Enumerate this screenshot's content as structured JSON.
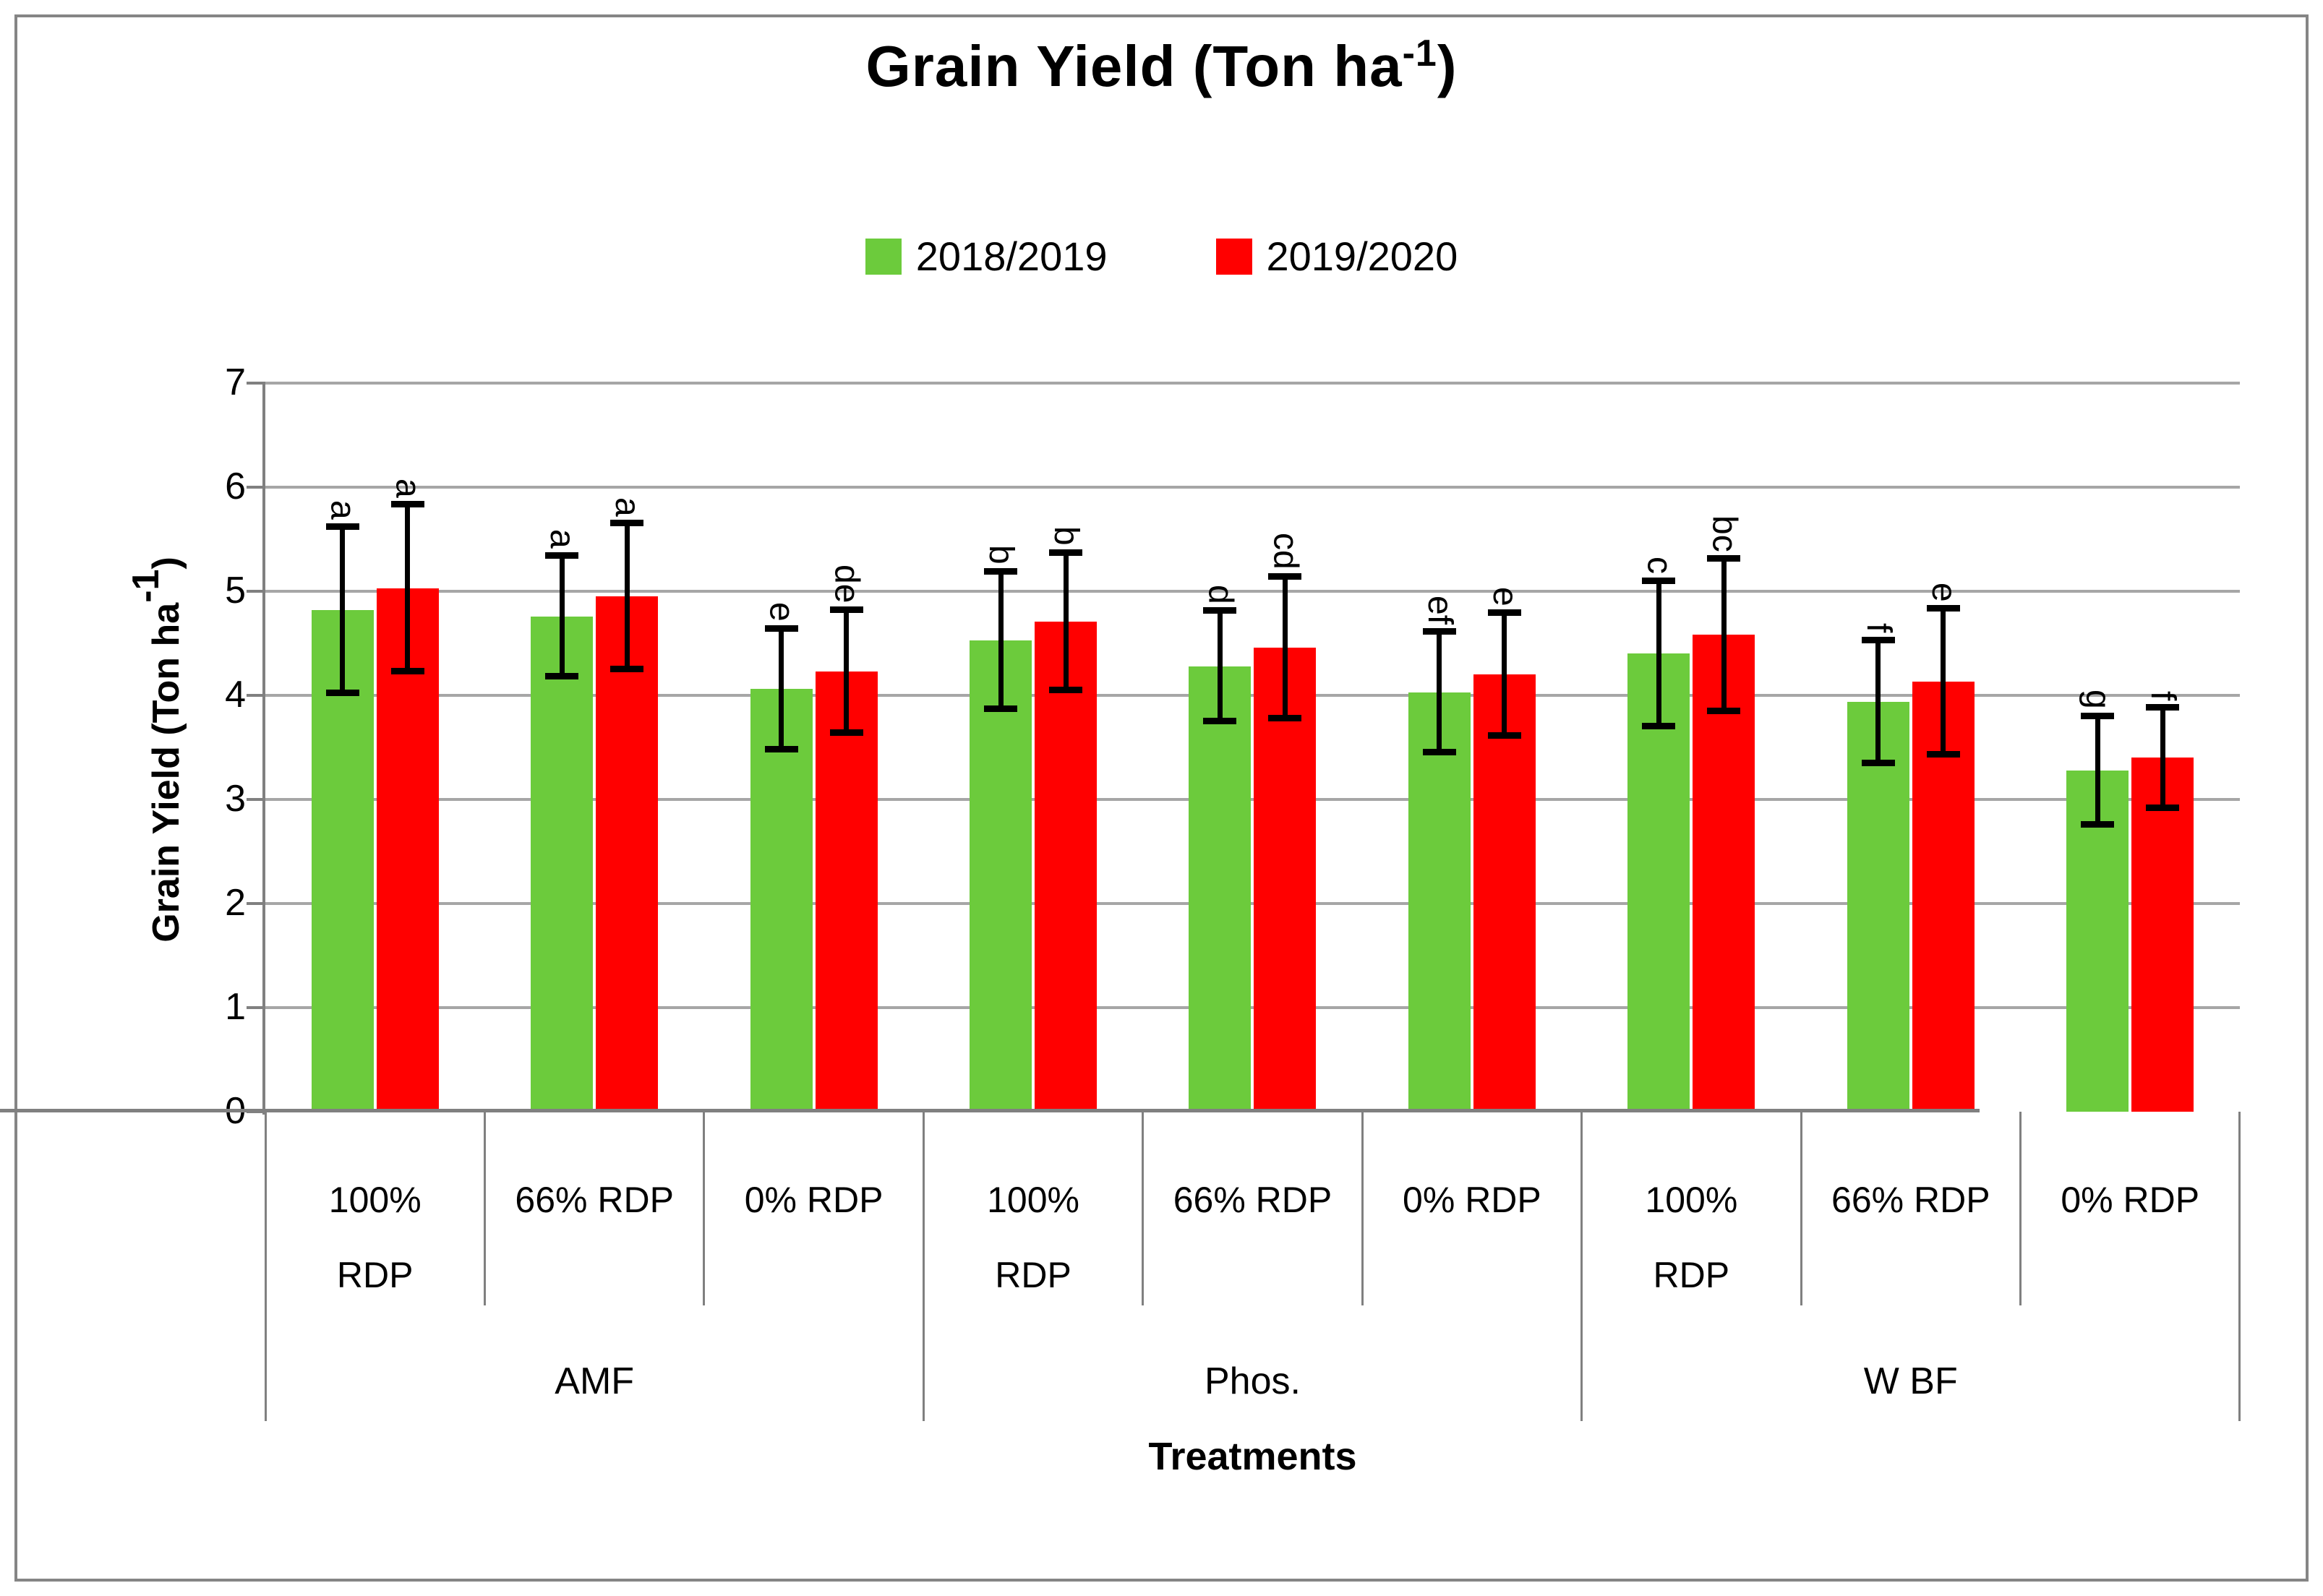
{
  "title": {
    "text": "Grain Yield (Ton ha",
    "sup": "-1",
    "end": ")"
  },
  "legend": {
    "items": [
      {
        "label": "2018/2019",
        "color": "#6CCB3C"
      },
      {
        "label": "2019/2020",
        "color": "#FF0000"
      }
    ]
  },
  "y_axis": {
    "title": "Grain Yield (Ton ha",
    "title_sup": "-1",
    "title_end": ")",
    "ticks": [
      "0",
      "1",
      "2",
      "3",
      "4",
      "5",
      "6",
      "7"
    ],
    "min": 0,
    "max": 7
  },
  "x_axis": {
    "title": "Treatments"
  },
  "chart_data": {
    "type": "bar",
    "title": "Grain Yield (Ton ha-1)",
    "ylabel": "Grain Yield (Ton ha-1)",
    "xlabel": "Treatments",
    "ylim": [
      0,
      7
    ],
    "grid": "horizontal",
    "legend_position": "top",
    "groups": [
      "AMF",
      "Phos.",
      "W BF"
    ],
    "categories_per_group": [
      "100% RDP",
      "66% RDP",
      "0% RDP"
    ],
    "gridline_color": "#A6A6A6",
    "axis_color": "#808080",
    "error_bar_color": "#000000",
    "series": [
      {
        "name": "2018/2019",
        "color": "#6CCB3C",
        "values": [
          4.82,
          4.76,
          4.06,
          4.53,
          4.28,
          4.03,
          4.4,
          3.94,
          3.28
        ],
        "errors": [
          0.8,
          0.58,
          0.58,
          0.66,
          0.53,
          0.58,
          0.7,
          0.59,
          0.52
        ],
        "letters": [
          "a",
          "a",
          "e",
          "b",
          "d",
          "ef",
          "c",
          "f",
          "g"
        ]
      },
      {
        "name": "2019/2020",
        "color": "#FF0000",
        "values": [
          5.03,
          4.95,
          4.23,
          4.71,
          4.46,
          4.2,
          4.58,
          4.13,
          3.4
        ],
        "errors": [
          0.8,
          0.7,
          0.59,
          0.66,
          0.68,
          0.59,
          0.73,
          0.7,
          0.48
        ],
        "letters": [
          "a",
          "a",
          "de",
          "b",
          "cd",
          "e",
          "bc",
          "e",
          "f"
        ]
      }
    ]
  }
}
